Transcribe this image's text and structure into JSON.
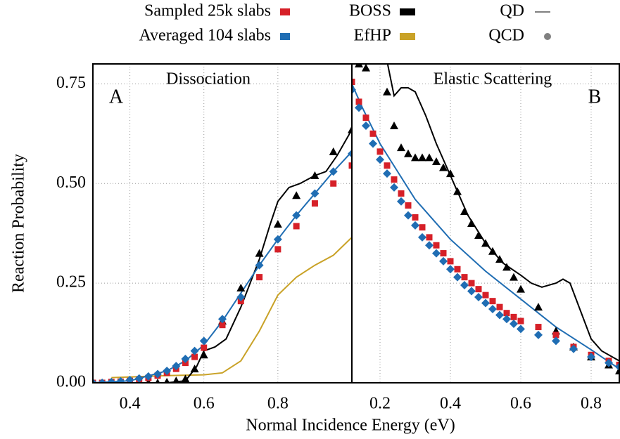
{
  "legend": {
    "entries": [
      {
        "name": "Sampled 25k slabs",
        "color": "#d62028",
        "marker": "square"
      },
      {
        "name": "Averaged 104 slabs",
        "color": "#1f6db3",
        "marker": "square"
      },
      {
        "name": "BOSS",
        "color": "#000000",
        "marker": "square"
      },
      {
        "name": "EfHP",
        "color": "#c9a227",
        "marker": "square"
      },
      {
        "name": "QD",
        "color": "#808080",
        "marker": "line"
      },
      {
        "name": "QCD",
        "color": "#808080",
        "marker": "circle"
      }
    ]
  },
  "x_label": "Normal Incidence Energy (eV)",
  "y_label": "Reaction Probability",
  "chart_data": [
    {
      "type": "line",
      "title": "Dissociation",
      "panel_label": "A",
      "xlim": [
        0.3,
        1.0
      ],
      "ylim": [
        0,
        0.8
      ],
      "xticks": [
        0.4,
        0.6,
        0.8
      ],
      "yticks": [
        {
          "value": 0,
          "label": "0.00"
        },
        0.25,
        {
          "value": 0.5,
          "label": "0.50"
        },
        0.75
      ],
      "grid": true,
      "series": [
        {
          "marker": "line",
          "color": "#c9a227",
          "x": [
            0.35,
            0.5,
            0.6,
            0.65,
            0.7,
            0.75,
            0.8,
            0.85,
            0.9,
            0.95,
            1.0
          ],
          "values": [
            0.013,
            0.018,
            0.02,
            0.025,
            0.055,
            0.13,
            0.22,
            0.265,
            0.295,
            0.32,
            0.365
          ]
        },
        {
          "marker": "line",
          "color": "#000000",
          "x": [
            0.3,
            0.45,
            0.5,
            0.55,
            0.58,
            0.6,
            0.63,
            0.66,
            0.7,
            0.75,
            0.78,
            0.8,
            0.83,
            0.86,
            0.9,
            0.93,
            0.96,
            1.0
          ],
          "values": [
            0,
            0,
            0,
            0.005,
            0.04,
            0.08,
            0.09,
            0.11,
            0.19,
            0.31,
            0.4,
            0.455,
            0.49,
            0.5,
            0.52,
            0.53,
            0.57,
            0.635
          ]
        },
        {
          "marker": "line",
          "color": "#1f6db3",
          "x": [
            0.3,
            0.4,
            0.5,
            0.55,
            0.6,
            0.65,
            0.7,
            0.75,
            0.8,
            0.85,
            0.9,
            0.95,
            1.0
          ],
          "values": [
            0,
            0.005,
            0.03,
            0.055,
            0.095,
            0.155,
            0.225,
            0.295,
            0.36,
            0.42,
            0.475,
            0.53,
            0.58
          ]
        },
        {
          "marker": "triangle",
          "color": "#000000",
          "x": [
            0.45,
            0.475,
            0.5,
            0.525,
            0.55,
            0.575,
            0.6,
            0.65,
            0.7,
            0.75,
            0.8,
            0.85,
            0.9,
            0.95,
            1.0
          ],
          "values": [
            0,
            0,
            0.002,
            0.005,
            0.01,
            0.035,
            0.07,
            0.155,
            0.238,
            0.325,
            0.398,
            0.47,
            0.52,
            0.58,
            0.635
          ]
        },
        {
          "marker": "square",
          "color": "#d62028",
          "x": [
            0.3,
            0.325,
            0.35,
            0.375,
            0.4,
            0.425,
            0.45,
            0.475,
            0.5,
            0.525,
            0.55,
            0.575,
            0.6,
            0.65,
            0.7,
            0.75,
            0.8,
            0.85,
            0.9,
            0.95,
            1.0
          ],
          "values": [
            0,
            0,
            0.002,
            0.003,
            0.005,
            0.008,
            0.012,
            0.018,
            0.025,
            0.035,
            0.05,
            0.065,
            0.088,
            0.145,
            0.205,
            0.265,
            0.335,
            0.393,
            0.45,
            0.5,
            0.545
          ]
        },
        {
          "marker": "diamond",
          "color": "#1f6db3",
          "x": [
            0.3,
            0.325,
            0.35,
            0.375,
            0.4,
            0.425,
            0.45,
            0.475,
            0.5,
            0.525,
            0.55,
            0.575,
            0.6,
            0.65,
            0.7,
            0.75,
            0.8,
            0.85,
            0.9,
            0.95,
            1.0
          ],
          "values": [
            0,
            0,
            0.002,
            0.004,
            0.007,
            0.011,
            0.016,
            0.022,
            0.03,
            0.042,
            0.06,
            0.08,
            0.105,
            0.16,
            0.215,
            0.295,
            0.36,
            0.42,
            0.475,
            0.53,
            0.575
          ]
        }
      ]
    },
    {
      "type": "line",
      "title": "Elastic Scattering",
      "panel_label": "B",
      "xlim": [
        0.12,
        0.88
      ],
      "ylim": [
        0,
        0.8
      ],
      "xticks": [
        0.2,
        0.4,
        0.6,
        0.8
      ],
      "yticks": [
        0,
        0.25,
        0.5,
        0.75
      ],
      "grid": true,
      "series": [
        {
          "marker": "line",
          "color": "#000000",
          "x": [
            0.21,
            0.24,
            0.26,
            0.28,
            0.3,
            0.33,
            0.36,
            0.4,
            0.45,
            0.5,
            0.55,
            0.6,
            0.63,
            0.66,
            0.7,
            0.72,
            0.74,
            0.77,
            0.8,
            0.83,
            0.88
          ],
          "values": [
            0.85,
            0.72,
            0.74,
            0.74,
            0.73,
            0.67,
            0.6,
            0.52,
            0.42,
            0.35,
            0.3,
            0.27,
            0.25,
            0.24,
            0.25,
            0.26,
            0.25,
            0.18,
            0.11,
            0.08,
            0.055
          ]
        },
        {
          "marker": "line",
          "color": "#1f6db3",
          "x": [
            0.12,
            0.15,
            0.2,
            0.25,
            0.3,
            0.35,
            0.4,
            0.5,
            0.6,
            0.7,
            0.8,
            0.88
          ],
          "values": [
            0.75,
            0.69,
            0.6,
            0.53,
            0.46,
            0.41,
            0.36,
            0.28,
            0.21,
            0.14,
            0.083,
            0.035
          ]
        },
        {
          "marker": "triangle",
          "color": "#000000",
          "x": [
            0.14,
            0.16,
            0.22,
            0.24,
            0.26,
            0.28,
            0.3,
            0.32,
            0.34,
            0.36,
            0.38,
            0.4,
            0.42,
            0.44,
            0.46,
            0.48,
            0.5,
            0.52,
            0.54,
            0.56,
            0.58,
            0.6,
            0.65,
            0.7,
            0.75,
            0.8,
            0.85,
            0.88
          ],
          "values": [
            0.8,
            0.79,
            0.73,
            0.645,
            0.59,
            0.575,
            0.565,
            0.565,
            0.565,
            0.555,
            0.54,
            0.525,
            0.48,
            0.43,
            0.4,
            0.37,
            0.35,
            0.33,
            0.31,
            0.29,
            0.265,
            0.235,
            0.19,
            0.13,
            0.09,
            0.065,
            0.045,
            0.03
          ]
        },
        {
          "marker": "square",
          "color": "#d62028",
          "x": [
            0.12,
            0.14,
            0.16,
            0.18,
            0.2,
            0.22,
            0.24,
            0.26,
            0.28,
            0.3,
            0.32,
            0.34,
            0.36,
            0.38,
            0.4,
            0.42,
            0.44,
            0.46,
            0.48,
            0.5,
            0.52,
            0.54,
            0.56,
            0.58,
            0.6,
            0.65,
            0.7,
            0.75,
            0.8,
            0.85,
            0.88
          ],
          "values": [
            0.755,
            0.705,
            0.665,
            0.625,
            0.58,
            0.545,
            0.51,
            0.475,
            0.445,
            0.415,
            0.39,
            0.365,
            0.345,
            0.325,
            0.305,
            0.285,
            0.265,
            0.25,
            0.235,
            0.22,
            0.205,
            0.19,
            0.175,
            0.165,
            0.155,
            0.14,
            0.12,
            0.09,
            0.07,
            0.055,
            0.045
          ]
        },
        {
          "marker": "diamond",
          "color": "#1f6db3",
          "x": [
            0.12,
            0.14,
            0.16,
            0.18,
            0.2,
            0.22,
            0.24,
            0.26,
            0.28,
            0.3,
            0.32,
            0.34,
            0.36,
            0.38,
            0.4,
            0.42,
            0.44,
            0.46,
            0.48,
            0.5,
            0.52,
            0.54,
            0.56,
            0.58,
            0.6,
            0.65,
            0.7,
            0.75,
            0.8,
            0.85,
            0.88
          ],
          "values": [
            0.735,
            0.69,
            0.645,
            0.6,
            0.56,
            0.525,
            0.49,
            0.455,
            0.42,
            0.395,
            0.365,
            0.345,
            0.325,
            0.305,
            0.285,
            0.265,
            0.245,
            0.23,
            0.215,
            0.2,
            0.185,
            0.17,
            0.16,
            0.148,
            0.135,
            0.12,
            0.105,
            0.085,
            0.065,
            0.05,
            0.04
          ]
        }
      ]
    }
  ]
}
